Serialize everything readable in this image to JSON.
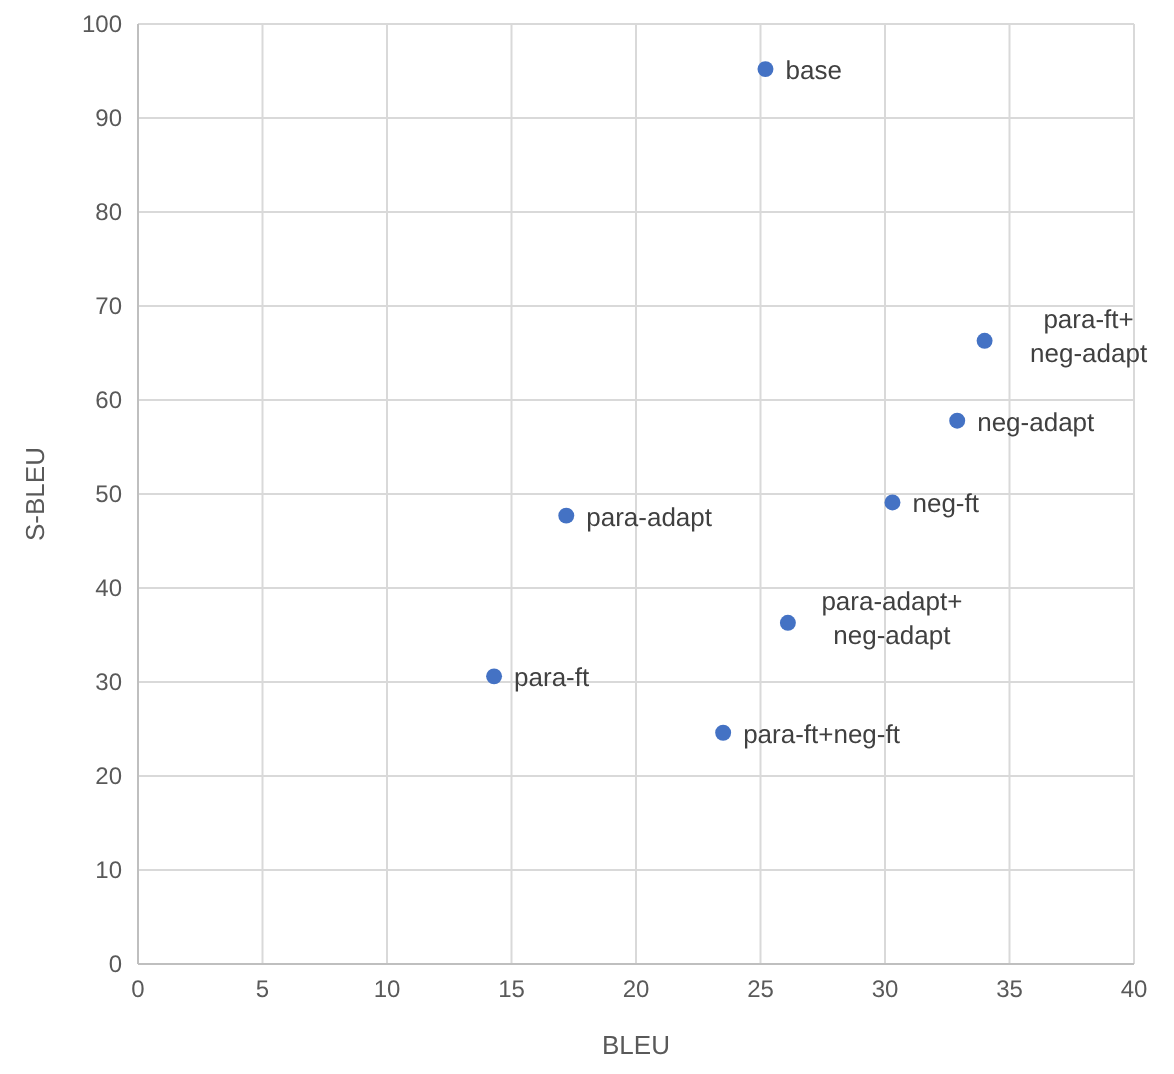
{
  "chart_data": {
    "type": "scatter",
    "xlabel": "BLEU",
    "ylabel": "S-BLEU",
    "x": [
      25.2,
      34.0,
      32.9,
      30.3,
      17.2,
      14.3,
      26.1,
      23.5
    ],
    "values": [
      95.2,
      66.3,
      57.8,
      49.1,
      47.7,
      30.6,
      36.3,
      24.6
    ],
    "color": "#4472c4",
    "marker": "circle",
    "grid": true,
    "xlim": [
      0,
      40
    ],
    "xticks": [
      0,
      5,
      10,
      15,
      20,
      25,
      30,
      35,
      40
    ],
    "ylim": [
      0,
      100
    ],
    "yticks": [
      0,
      10,
      20,
      30,
      40,
      50,
      60,
      70,
      80,
      90,
      100
    ],
    "annotations": [
      {
        "text": "base",
        "x": 25.2,
        "y": 95.2
      },
      {
        "text": "para-ft+ neg-adapt",
        "x": 34.0,
        "y": 66.3
      },
      {
        "text": "neg-adapt",
        "x": 32.9,
        "y": 57.8
      },
      {
        "text": "neg-ft",
        "x": 30.3,
        "y": 49.1
      },
      {
        "text": "para-adapt",
        "x": 17.2,
        "y": 47.7
      },
      {
        "text": "para-ft",
        "x": 14.3,
        "y": 30.6
      },
      {
        "text": "para-adapt+ neg-adapt",
        "x": 26.1,
        "y": 36.3
      },
      {
        "text": "para-ft+neg-ft",
        "x": 23.5,
        "y": 24.6
      }
    ]
  }
}
